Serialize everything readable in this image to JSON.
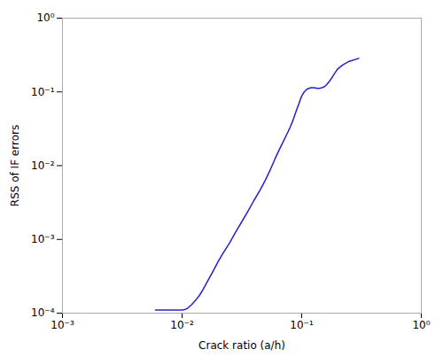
{
  "chart_data": {
    "type": "line",
    "xlabel": "Crack ratio (a/h)",
    "ylabel": "RSS of IF errors",
    "log": true,
    "grid": false,
    "color": "#2222cc",
    "xlim": [
      0.001,
      1
    ],
    "ylim": [
      0.0001,
      1
    ],
    "xticks": [
      {
        "value": 0.001,
        "label": "10⁻³"
      },
      {
        "value": 0.01,
        "label": "10⁻²"
      },
      {
        "value": 0.1,
        "label": "10⁻¹"
      },
      {
        "value": 1,
        "label": "10⁰"
      }
    ],
    "yticks": [
      {
        "value": 0.0001,
        "label": "10⁻⁴"
      },
      {
        "value": 0.001,
        "label": "10⁻³"
      },
      {
        "value": 0.01,
        "label": "10⁻²"
      },
      {
        "value": 0.1,
        "label": "10⁻¹"
      },
      {
        "value": 1,
        "label": "10⁰"
      }
    ],
    "x": [
      0.006,
      0.007,
      0.008,
      0.009,
      0.0095,
      0.01,
      0.0105,
      0.011,
      0.012,
      0.013,
      0.014,
      0.015,
      0.016,
      0.018,
      0.02,
      0.022,
      0.025,
      0.028,
      0.032,
      0.036,
      0.04,
      0.045,
      0.05,
      0.055,
      0.06,
      0.065,
      0.07,
      0.075,
      0.08,
      0.085,
      0.09,
      0.095,
      0.1,
      0.105,
      0.11,
      0.115,
      0.12,
      0.125,
      0.13,
      0.135,
      0.14,
      0.145,
      0.15,
      0.155,
      0.16,
      0.17,
      0.18,
      0.19,
      0.2,
      0.22,
      0.25,
      0.3
    ],
    "values": [
      0.00011,
      0.00011,
      0.00011,
      0.00011,
      0.00011,
      0.00011,
      0.000112,
      0.000115,
      0.00013,
      0.00015,
      0.000175,
      0.00021,
      0.000255,
      0.00036,
      0.0005,
      0.00065,
      0.0009,
      0.00125,
      0.0018,
      0.0025,
      0.0034,
      0.0047,
      0.0065,
      0.009,
      0.0125,
      0.0165,
      0.021,
      0.0265,
      0.033,
      0.042,
      0.055,
      0.07,
      0.088,
      0.1,
      0.108,
      0.112,
      0.114,
      0.114,
      0.113,
      0.112,
      0.112,
      0.113,
      0.115,
      0.118,
      0.123,
      0.138,
      0.158,
      0.182,
      0.205,
      0.232,
      0.26,
      0.285
    ]
  }
}
